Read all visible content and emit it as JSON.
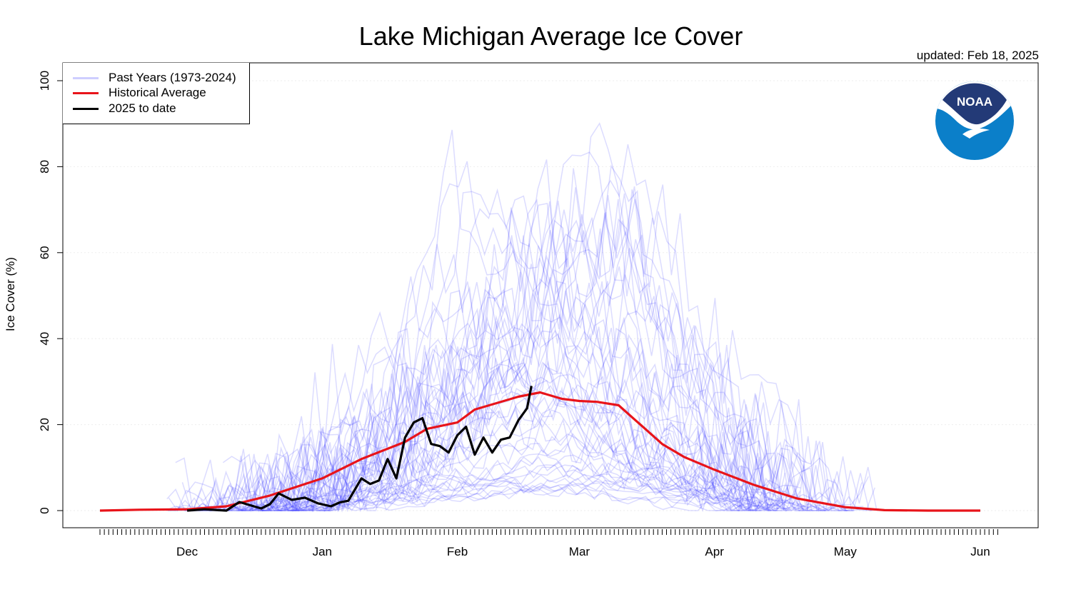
{
  "title": "Lake Michigan Average Ice Cover",
  "updated": "updated: Feb 18, 2025",
  "logo_text": "NOAA",
  "legend": {
    "past": "Past Years (1973-2024)",
    "avg": "Historical Average",
    "current": "2025 to date"
  },
  "colors": {
    "past": "#3b3bff",
    "avg": "#e8141a",
    "current": "#000000",
    "noaa_navy": "#233a77",
    "noaa_blue": "#0b7fc9"
  },
  "chart_data": {
    "type": "line",
    "title": "Lake Michigan Average Ice Cover",
    "xlabel": "",
    "ylabel": "Ice Cover (%)",
    "ylim": [
      0,
      100
    ],
    "yticks": [
      0,
      20,
      40,
      60,
      80,
      100
    ],
    "x_month_labels": [
      "Dec",
      "Jan",
      "Feb",
      "Mar",
      "Apr",
      "May",
      "Jun"
    ],
    "grid": true,
    "legend_position": "top-left",
    "series": [
      {
        "name": "Historical Average",
        "x": [
          "Nov 11",
          "Nov 20",
          "Dec 1",
          "Dec 10",
          "Dec 20",
          "Jan 1",
          "Jan 10",
          "Jan 20",
          "Jan 25",
          "Feb 1",
          "Feb 5",
          "Feb 10",
          "Feb 15",
          "Feb 20",
          "Feb 25",
          "Mar 1",
          "Mar 5",
          "Mar 10",
          "Mar 15",
          "Mar 20",
          "Mar 25",
          "Apr 1",
          "Apr 10",
          "Apr 20",
          "May 1",
          "May 10",
          "May 20",
          "Jun 1"
        ],
        "y": [
          0,
          0.2,
          0.3,
          1,
          3.5,
          7.5,
          12,
          16,
          19,
          20.5,
          23.5,
          25,
          26.5,
          27.5,
          26,
          25.5,
          25.3,
          24.5,
          20,
          15.5,
          12.5,
          9.5,
          6,
          2.8,
          0.8,
          0.1,
          0,
          0
        ]
      },
      {
        "name": "2025 to date",
        "x": [
          "Dec 1",
          "Dec 5",
          "Dec 10",
          "Dec 13",
          "Dec 15",
          "Dec 18",
          "Dec 20",
          "Dec 22",
          "Dec 25",
          "Dec 28",
          "Dec 31",
          "Jan 3",
          "Jan 5",
          "Jan 7",
          "Jan 10",
          "Jan 12",
          "Jan 14",
          "Jan 16",
          "Jan 18",
          "Jan 20",
          "Jan 22",
          "Jan 24",
          "Jan 26",
          "Jan 28",
          "Jan 30",
          "Feb 1",
          "Feb 3",
          "Feb 5",
          "Feb 7",
          "Feb 9",
          "Feb 11",
          "Feb 13",
          "Feb 15",
          "Feb 17",
          "Feb 18"
        ],
        "y": [
          0,
          0.3,
          0,
          2,
          1.4,
          0.5,
          1.5,
          4,
          2.5,
          3,
          1.7,
          1,
          1.9,
          2.3,
          7.5,
          6.2,
          7,
          12,
          7.5,
          17,
          20.5,
          21.5,
          15.5,
          15,
          13.5,
          17.5,
          19.5,
          13,
          17,
          13.5,
          16.5,
          17,
          21,
          23.8,
          29
        ]
      }
    ]
  }
}
